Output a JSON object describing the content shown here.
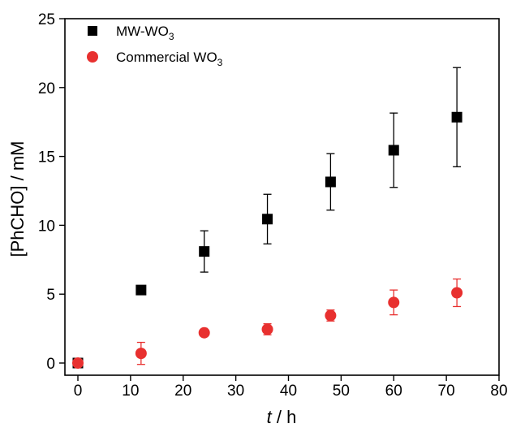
{
  "chart_data": {
    "type": "scatter",
    "title": "",
    "xlabel_italic": "t",
    "xlabel_rest": " / h",
    "ylabel": "[PhCHO] / mM",
    "xlim": [
      0,
      80
    ],
    "ylim": [
      0,
      25
    ],
    "x_ticks": [
      0,
      10,
      20,
      30,
      40,
      50,
      60,
      70,
      80
    ],
    "y_ticks": [
      0,
      5,
      10,
      15,
      20,
      25
    ],
    "grid": false,
    "legend_position": "top-left",
    "series": [
      {
        "name_main": "MW-WO",
        "name_sub": "3",
        "marker": "square",
        "color": "#000000",
        "points": [
          {
            "x": 0,
            "y": 0.0,
            "err": 0.0
          },
          {
            "x": 12,
            "y": 5.3,
            "err": 0.25
          },
          {
            "x": 24,
            "y": 8.1,
            "err": 1.5
          },
          {
            "x": 36,
            "y": 10.45,
            "err": 1.8
          },
          {
            "x": 48,
            "y": 13.15,
            "err": 2.05
          },
          {
            "x": 60,
            "y": 15.45,
            "err": 2.7
          },
          {
            "x": 72,
            "y": 17.85,
            "err": 3.6
          }
        ]
      },
      {
        "name_main": "Commercial WO",
        "name_sub": "3",
        "marker": "circle",
        "color": "#e8302f",
        "points": [
          {
            "x": 0,
            "y": 0.0,
            "err": 0.0
          },
          {
            "x": 12,
            "y": 0.7,
            "err": 0.8
          },
          {
            "x": 24,
            "y": 2.2,
            "err": 0.15
          },
          {
            "x": 36,
            "y": 2.45,
            "err": 0.4
          },
          {
            "x": 48,
            "y": 3.45,
            "err": 0.4
          },
          {
            "x": 60,
            "y": 4.4,
            "err": 0.9
          },
          {
            "x": 72,
            "y": 5.1,
            "err": 1.0
          }
        ]
      }
    ]
  }
}
